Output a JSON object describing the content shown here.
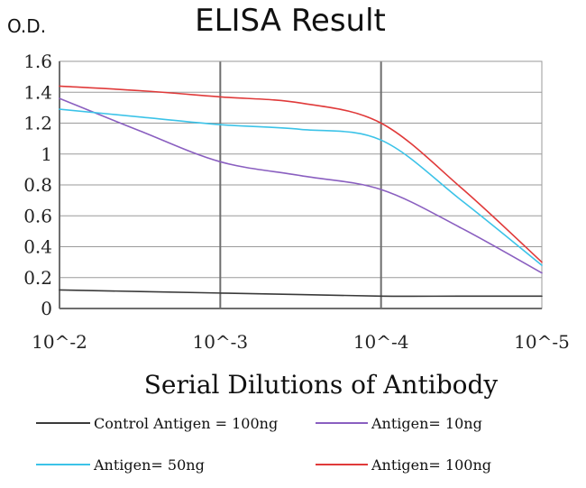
{
  "chart_data": {
    "type": "line",
    "title": "ELISA Result",
    "ylabel": "O.D.",
    "xlabel": "Serial Dilutions  of Antibody",
    "x_ticks": [
      "10^-2",
      "10^-3",
      "10^-4",
      "10^-5"
    ],
    "y_ticks": [
      "0",
      "0.2",
      "0.4",
      "0.6",
      "0.8",
      "1",
      "1.2",
      "1.4",
      "1.6"
    ],
    "ylim": [
      0,
      1.6
    ],
    "x_scale": "log-dilution",
    "grid": true,
    "legend_position": "bottom",
    "series": [
      {
        "name": "Control Antigen = 100ng",
        "color": "#3a3a3a",
        "x": [
          "10^-2",
          "10^-2.5",
          "10^-3",
          "10^-3.5",
          "10^-4",
          "10^-4.5",
          "10^-5"
        ],
        "values": [
          0.12,
          0.11,
          0.1,
          0.09,
          0.08,
          0.08,
          0.08
        ]
      },
      {
        "name": "Antigen= 10ng",
        "color": "#8a5fc0",
        "x": [
          "10^-2",
          "10^-2.5",
          "10^-3",
          "10^-3.5",
          "10^-4",
          "10^-4.5",
          "10^-5"
        ],
        "values": [
          1.36,
          1.15,
          0.95,
          0.86,
          0.77,
          0.52,
          0.23
        ]
      },
      {
        "name": "Antigen= 50ng",
        "color": "#3cc3e8",
        "x": [
          "10^-2",
          "10^-2.5",
          "10^-3",
          "10^-3.5",
          "10^-4",
          "10^-4.5",
          "10^-5"
        ],
        "values": [
          1.29,
          1.24,
          1.19,
          1.16,
          1.09,
          0.7,
          0.28
        ]
      },
      {
        "name": "Antigen= 100ng",
        "color": "#e03a3a",
        "x": [
          "10^-2",
          "10^-2.5",
          "10^-3",
          "10^-3.5",
          "10^-4",
          "10^-4.5",
          "10^-5"
        ],
        "values": [
          1.44,
          1.41,
          1.37,
          1.33,
          1.2,
          0.78,
          0.3
        ]
      }
    ]
  }
}
